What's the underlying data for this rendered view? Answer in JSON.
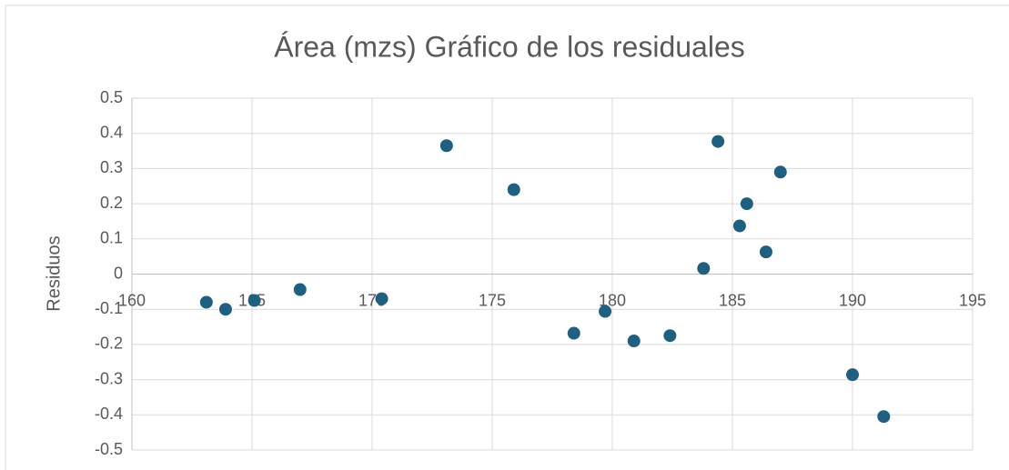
{
  "chart_data": {
    "type": "scatter",
    "title": "Área (mzs) Gráfico de los residuales",
    "y_label": "Residuos",
    "color": "#1f5f80",
    "x": [
      163.1,
      163.9,
      165.1,
      167.0,
      170.4,
      173.1,
      175.9,
      178.4,
      179.7,
      180.9,
      182.4,
      183.8,
      184.4,
      185.3,
      185.6,
      186.4,
      187.0,
      190.0,
      191.3
    ],
    "values": [
      -0.08,
      -0.1,
      -0.075,
      -0.044,
      -0.07,
      0.365,
      0.24,
      -0.168,
      -0.106,
      -0.19,
      -0.175,
      0.016,
      0.377,
      0.137,
      0.2,
      0.063,
      0.29,
      -0.286,
      -0.405
    ],
    "xlim": [
      160,
      195
    ],
    "xticks": [
      160,
      165,
      170,
      175,
      180,
      185,
      190,
      195
    ],
    "ylim": [
      -0.5,
      0.5
    ],
    "yticks": [
      -0.5,
      -0.4,
      -0.3,
      -0.2,
      -0.1,
      0,
      0.1,
      0.2,
      0.3,
      0.4,
      0.5
    ],
    "grid": true
  }
}
